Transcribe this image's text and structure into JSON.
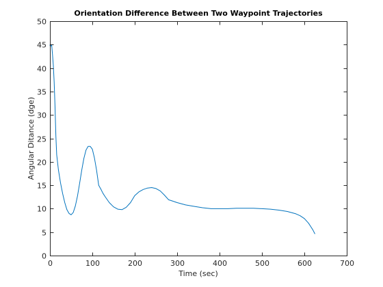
{
  "chart_data": {
    "type": "line",
    "title": "Orientation Difference Between Two Waypoint Trajectories",
    "xlabel": "Time (sec)",
    "ylabel": "Angular Ditance (dge)",
    "xlim": [
      0,
      700
    ],
    "ylim": [
      0,
      50
    ],
    "xticks": [
      0,
      100,
      200,
      300,
      400,
      500,
      600,
      700
    ],
    "yticks": [
      0,
      5,
      10,
      15,
      20,
      25,
      30,
      35,
      40,
      45,
      50
    ],
    "grid": false,
    "legend": "none",
    "series": [
      {
        "color": "#0072BD",
        "x": [
          0,
          1,
          2,
          4,
          6,
          8,
          10,
          12,
          14,
          16,
          20,
          25,
          30,
          35,
          40,
          45,
          50,
          55,
          60,
          65,
          70,
          75,
          80,
          85,
          90,
          95,
          100,
          105,
          110,
          115,
          120,
          125,
          130,
          140,
          150,
          160,
          170,
          180,
          190,
          200,
          210,
          220,
          230,
          240,
          250,
          260,
          270,
          280,
          290,
          300,
          320,
          340,
          360,
          380,
          400,
          420,
          440,
          460,
          480,
          500,
          520,
          540,
          560,
          580,
          590,
          600,
          610,
          615,
          620,
          625
        ],
        "y": [
          45.0,
          44.5,
          44.8,
          45.0,
          43.0,
          40.5,
          37.0,
          32.0,
          25.5,
          21.5,
          18.3,
          15.5,
          13.2,
          11.3,
          9.8,
          9.0,
          8.7,
          9.2,
          10.6,
          12.7,
          15.4,
          18.2,
          20.7,
          22.5,
          23.3,
          23.3,
          22.7,
          20.8,
          18.2,
          15.0,
          14.2,
          13.3,
          12.6,
          11.3,
          10.4,
          9.9,
          9.8,
          10.3,
          11.3,
          12.8,
          13.6,
          14.1,
          14.4,
          14.5,
          14.3,
          13.8,
          12.9,
          11.9,
          11.6,
          11.3,
          10.8,
          10.5,
          10.2,
          10.0,
          10.0,
          10.0,
          10.1,
          10.1,
          10.1,
          10.0,
          9.9,
          9.7,
          9.4,
          8.9,
          8.5,
          7.9,
          6.9,
          6.2,
          5.5,
          4.6
        ]
      }
    ]
  }
}
